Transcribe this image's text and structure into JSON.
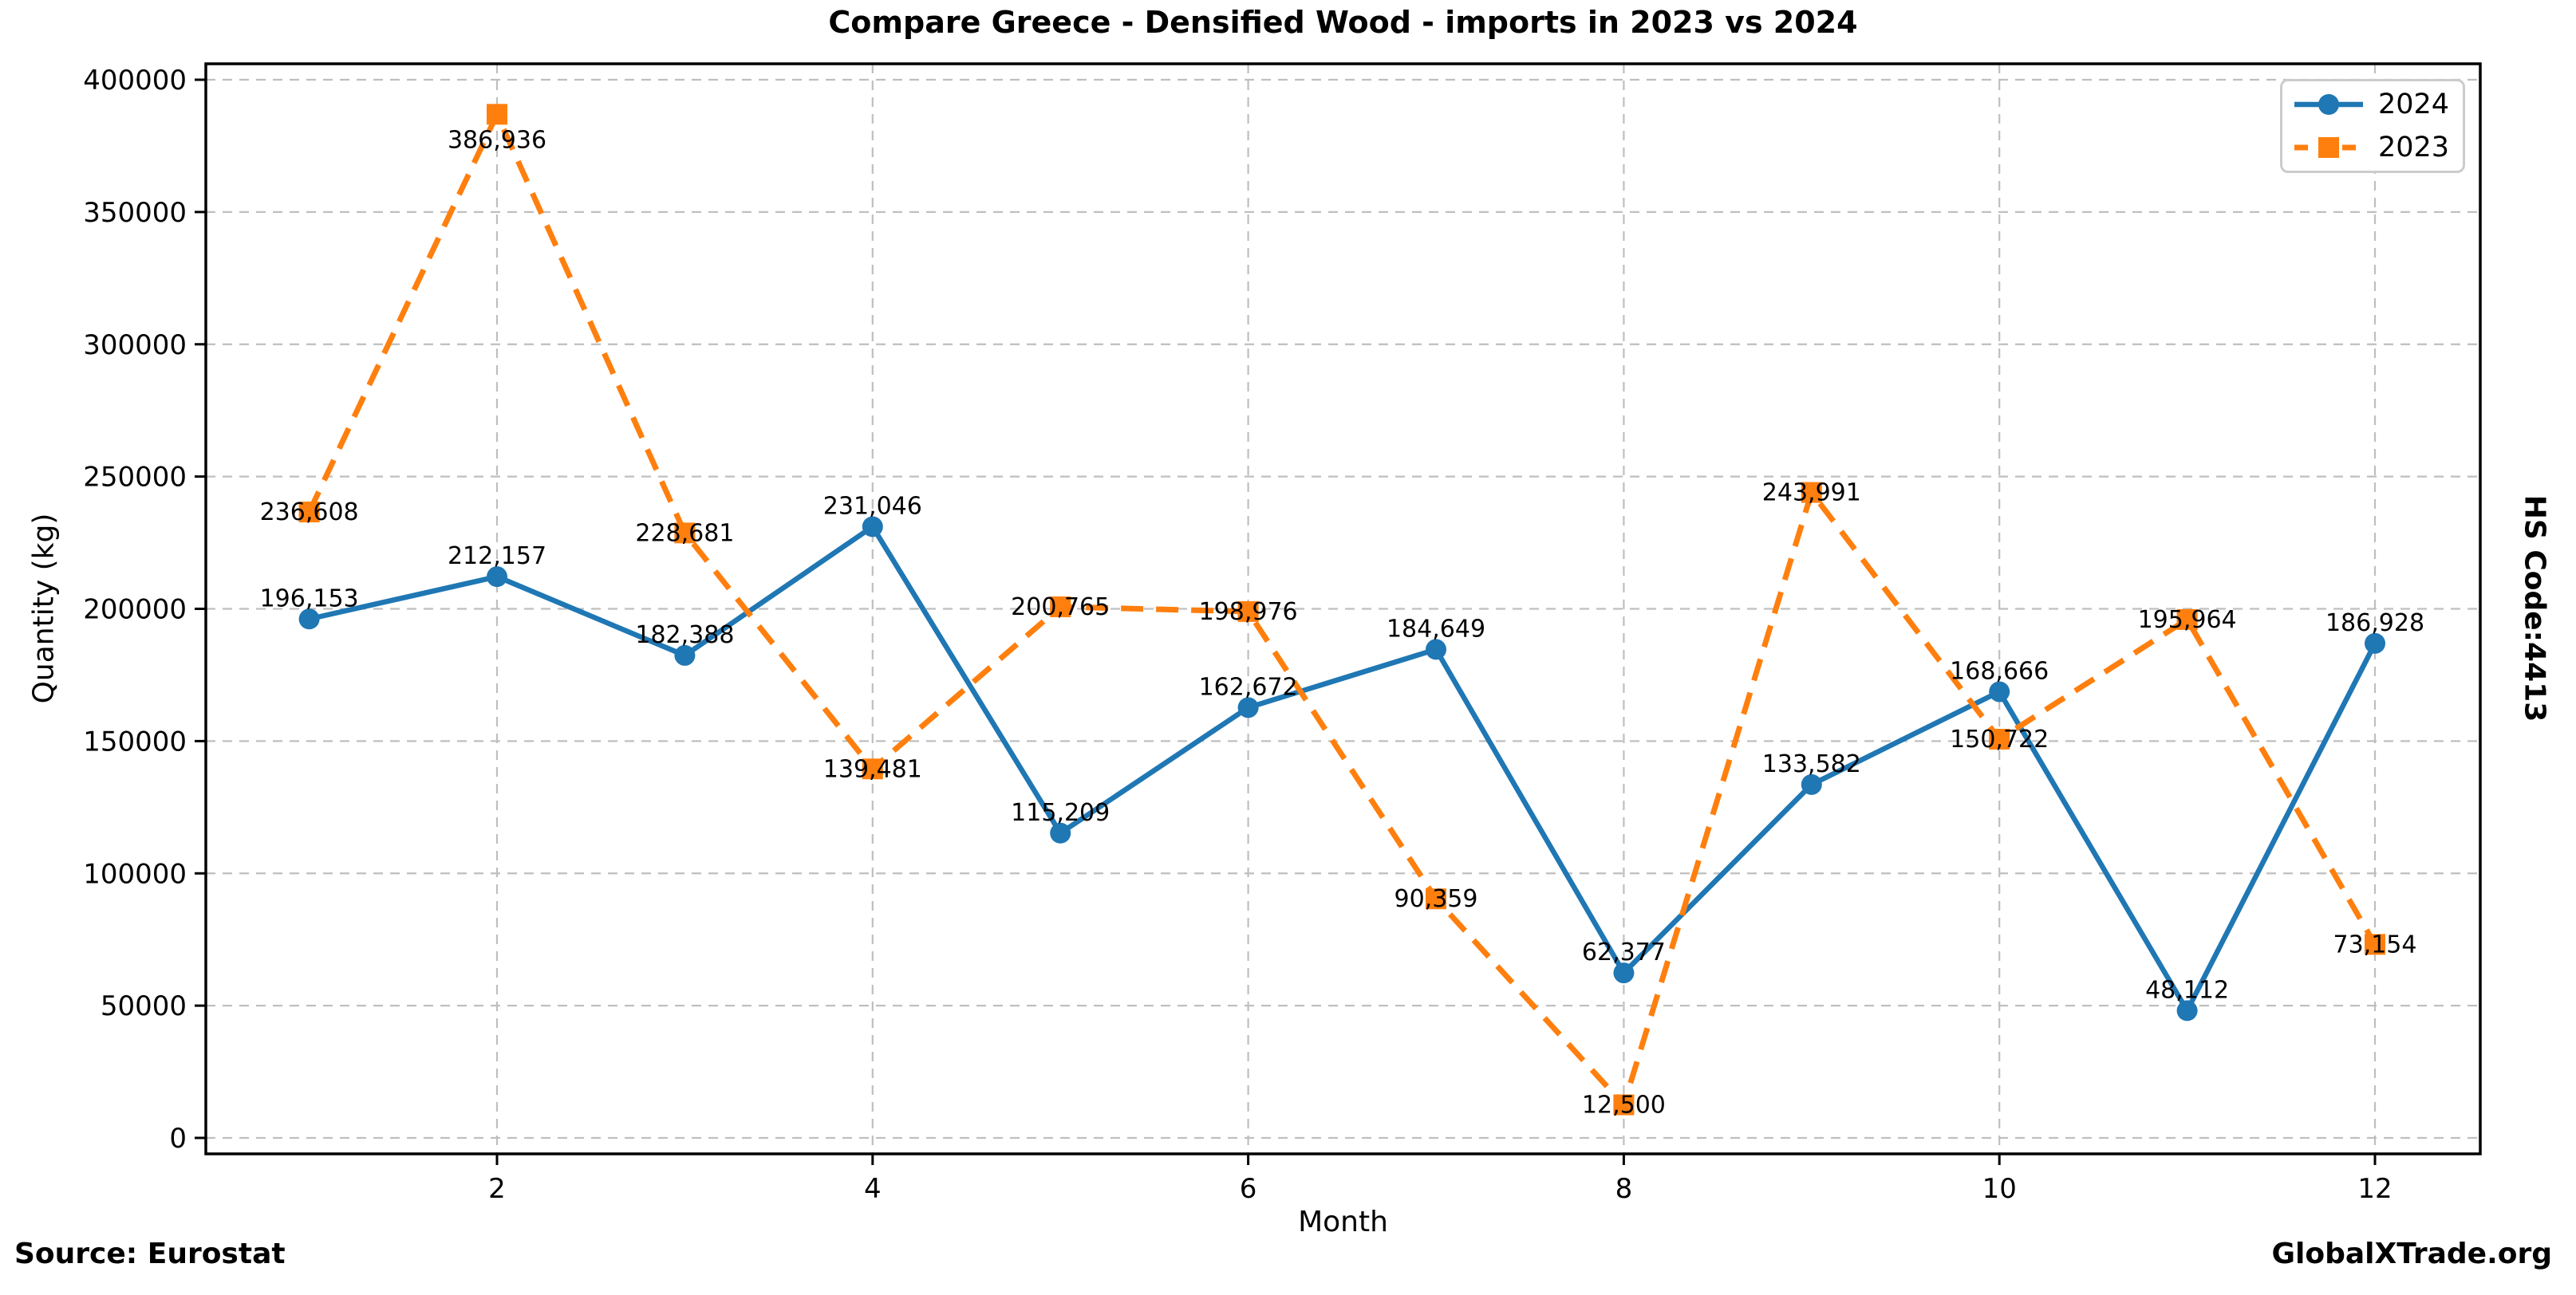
{
  "title": "Compare Greece - Densified Wood - imports in 2023 vs 2024",
  "side_label": "HS Code:4413",
  "footer": {
    "source": "Source: Eurostat",
    "brand": "GlobalXTrade.org"
  },
  "chart_data": {
    "type": "line",
    "title": "Compare Greece - Densified Wood - imports in 2023 vs 2024",
    "xlabel": "Month",
    "ylabel": "Quantity (kg)",
    "x": [
      1,
      2,
      3,
      4,
      5,
      6,
      7,
      8,
      9,
      10,
      11,
      12
    ],
    "xticks": [
      2,
      4,
      6,
      8,
      10,
      12
    ],
    "yticks": [
      0,
      50000,
      100000,
      150000,
      200000,
      250000,
      300000,
      350000,
      400000
    ],
    "ylim": [
      0,
      400000
    ],
    "grid": true,
    "legend_position": "upper right",
    "series": [
      {
        "name": "2024",
        "color": "#1f77b4",
        "marker": "circle",
        "line": "solid",
        "values": [
          196153,
          212157,
          182388,
          231046,
          115209,
          162672,
          184649,
          62377,
          133582,
          168666,
          48112,
          186928
        ]
      },
      {
        "name": "2023",
        "color": "#ff7f0e",
        "marker": "square",
        "line": "dashed",
        "values": [
          236608,
          386936,
          228681,
          139481,
          200765,
          198976,
          90359,
          12500,
          243991,
          150722,
          195964,
          73154
        ]
      }
    ]
  }
}
